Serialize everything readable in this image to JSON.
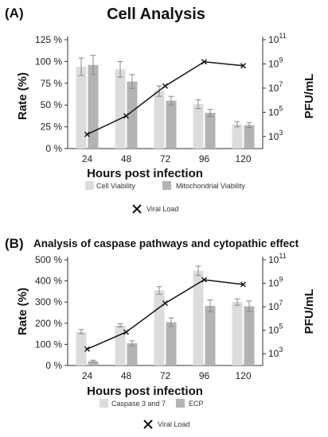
{
  "colors": {
    "series1": "#dcdcdc",
    "series2": "#b3b3b3",
    "line": "#111111",
    "axis": "#333333",
    "error": "#888888"
  },
  "chart_data": [
    {
      "type": "bar",
      "panel_label": "(A)",
      "title": "Cell Analysis",
      "xlabel": "Hours post infection",
      "ylabel": "Rate (%)",
      "y2label": "PFU/mL",
      "categories": [
        "24",
        "48",
        "72",
        "96",
        "120"
      ],
      "ylim": [
        0,
        125
      ],
      "yticks": [
        0,
        25,
        50,
        75,
        100,
        125
      ],
      "ytick_labels": [
        "0 %",
        "25 %",
        "50 %",
        "75 %",
        "100 %",
        "125 %"
      ],
      "y2_scale": "log",
      "y2_exponent_range": [
        2,
        11
      ],
      "y2_tick_exponents": [
        3,
        5,
        7,
        9,
        11
      ],
      "y2_tick_base": "10",
      "series": [
        {
          "name": "Cell Viability",
          "values": [
            94,
            91,
            66,
            51,
            28
          ],
          "errors": [
            10,
            9,
            6,
            5,
            3
          ]
        },
        {
          "name": "Mitochondrial Viability",
          "values": [
            96,
            77,
            55,
            41,
            27
          ],
          "errors": [
            11,
            8,
            5,
            4,
            3
          ]
        }
      ],
      "line_series": {
        "name": "Viral Load",
        "values": [
          1500,
          50000,
          15000000,
          1500000000,
          700000000
        ]
      },
      "legend_items": [
        "Cell Viability",
        "Mitochondrial Viability",
        "Viral Load"
      ],
      "legend_position": "bottom"
    },
    {
      "type": "bar",
      "panel_label": "(B)",
      "title": "Analysis of caspase pathways and cytopathic effect",
      "xlabel": "Hours post infection",
      "ylabel": "Rate (%)",
      "y2label": "PFU/mL",
      "categories": [
        "24",
        "48",
        "72",
        "96",
        "120"
      ],
      "ylim": [
        0,
        500
      ],
      "yticks": [
        0,
        100,
        200,
        300,
        400,
        500
      ],
      "ytick_labels": [
        "0 %",
        "100 %",
        "200 %",
        "300 %",
        "400 %",
        "500 %"
      ],
      "y2_scale": "log",
      "y2_exponent_range": [
        2,
        11
      ],
      "y2_tick_exponents": [
        3,
        5,
        7,
        9,
        11
      ],
      "y2_tick_base": "10",
      "series": [
        {
          "name": "Caspase 3 and 7",
          "values": [
            160,
            190,
            355,
            448,
            300
          ],
          "errors": [
            10,
            8,
            18,
            22,
            15
          ]
        },
        {
          "name": "ECP",
          "values": [
            20,
            105,
            205,
            282,
            280
          ],
          "errors": [
            5,
            12,
            20,
            28,
            25
          ]
        }
      ],
      "line_series": {
        "name": "Viral Load",
        "values": [
          2500,
          70000,
          20000000,
          2000000000,
          800000000
        ]
      },
      "legend_items": [
        "Caspase 3 and 7",
        "ECP",
        "Viral Load"
      ],
      "legend_position": "bottom"
    }
  ]
}
